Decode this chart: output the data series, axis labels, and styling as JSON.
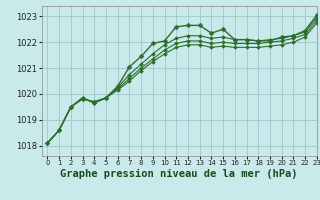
{
  "title": "Graphe pression niveau de la mer (hPa)",
  "bg_color": "#c8eaea",
  "grid_color": "#a0c8c8",
  "line_color": "#2d6e2d",
  "xlim": [
    -0.5,
    23
  ],
  "ylim": [
    1017.6,
    1023.4
  ],
  "yticks": [
    1018,
    1019,
    1020,
    1021,
    1022,
    1023
  ],
  "xticks": [
    0,
    1,
    2,
    3,
    4,
    5,
    6,
    7,
    8,
    9,
    10,
    11,
    12,
    13,
    14,
    15,
    16,
    17,
    18,
    19,
    20,
    21,
    22,
    23
  ],
  "series": [
    [
      1018.1,
      1018.6,
      1019.5,
      1019.8,
      1019.7,
      1019.85,
      1020.3,
      1021.05,
      1021.45,
      1021.95,
      1022.05,
      1022.6,
      1022.65,
      1022.65,
      1022.35,
      1022.5,
      1022.1,
      1022.1,
      1022.05,
      1022.05,
      1022.2,
      1022.25,
      1022.45,
      1023.05
    ],
    [
      1018.1,
      1018.6,
      1019.5,
      1019.85,
      1019.65,
      1019.85,
      1020.25,
      1020.75,
      1021.15,
      1021.55,
      1021.9,
      1022.15,
      1022.25,
      1022.25,
      1022.15,
      1022.2,
      1022.1,
      1022.1,
      1022.05,
      1022.1,
      1022.15,
      1022.25,
      1022.4,
      1022.95
    ],
    [
      1018.1,
      1018.6,
      1019.5,
      1019.85,
      1019.65,
      1019.85,
      1020.2,
      1020.6,
      1021.0,
      1021.35,
      1021.7,
      1021.95,
      1022.05,
      1022.05,
      1021.95,
      1022.0,
      1021.95,
      1021.95,
      1021.95,
      1022.0,
      1022.05,
      1022.15,
      1022.3,
      1022.85
    ],
    [
      1018.1,
      1018.6,
      1019.5,
      1019.85,
      1019.65,
      1019.85,
      1020.15,
      1020.5,
      1020.9,
      1021.25,
      1021.55,
      1021.8,
      1021.9,
      1021.9,
      1021.8,
      1021.85,
      1021.8,
      1021.8,
      1021.8,
      1021.85,
      1021.9,
      1022.0,
      1022.2,
      1022.75
    ]
  ],
  "title_fontsize": 7.5,
  "tick_fontsize": 6,
  "xtick_fontsize": 5
}
